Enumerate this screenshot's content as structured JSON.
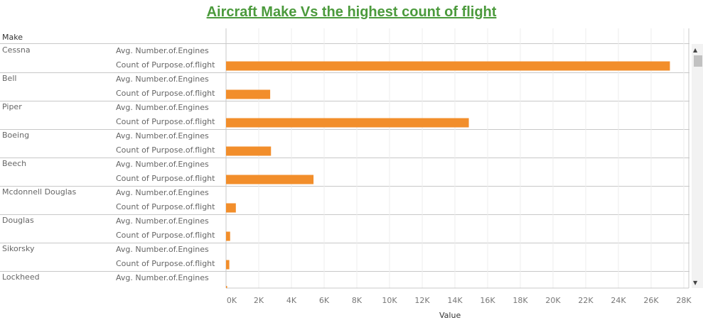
{
  "colors": {
    "title": "#4b9a3c",
    "bar": "#f28e2b",
    "grid": "#ededed",
    "axis": "#c8c8c8",
    "tick": "#777777"
  },
  "title": "Aircraft Make Vs the highest count of flight",
  "header": {
    "make": "Make"
  },
  "measures": [
    "Avg. Number.of.Engines",
    "Count of Purpose.of.flight"
  ],
  "scroll": {
    "up_icon": "chevron-up-icon",
    "down_icon": "chevron-down-icon",
    "up_glyph": "▲",
    "down_glyph": "▼"
  },
  "chart_data": {
    "type": "bar",
    "orientation": "horizontal",
    "title": "Aircraft Make Vs the highest count of flight",
    "xlabel": "Value",
    "xlim": [
      0,
      28000
    ],
    "xticks": [
      0,
      2000,
      4000,
      6000,
      8000,
      10000,
      12000,
      14000,
      16000,
      18000,
      20000,
      22000,
      24000,
      26000,
      28000
    ],
    "xtick_labels": [
      "0K",
      "2K",
      "4K",
      "6K",
      "8K",
      "10K",
      "12K",
      "14K",
      "16K",
      "18K",
      "20K",
      "22K",
      "24K",
      "26K",
      "28K"
    ],
    "grid": true,
    "categories": [
      "Cessna",
      "Bell",
      "Piper",
      "Boeing",
      "Beech",
      "Mcdonnell Douglas",
      "Douglas",
      "Sikorsky",
      "Lockheed"
    ],
    "series": [
      {
        "name": "Avg. Number.of.Engines",
        "values": [
          1.0,
          1.1,
          1.1,
          2.2,
          1.4,
          2.2,
          2.0,
          1.5,
          2.1
        ]
      },
      {
        "name": "Count of Purpose.of.flight",
        "values": [
          27150,
          2700,
          14850,
          2750,
          5350,
          600,
          250,
          200,
          100
        ]
      }
    ]
  }
}
